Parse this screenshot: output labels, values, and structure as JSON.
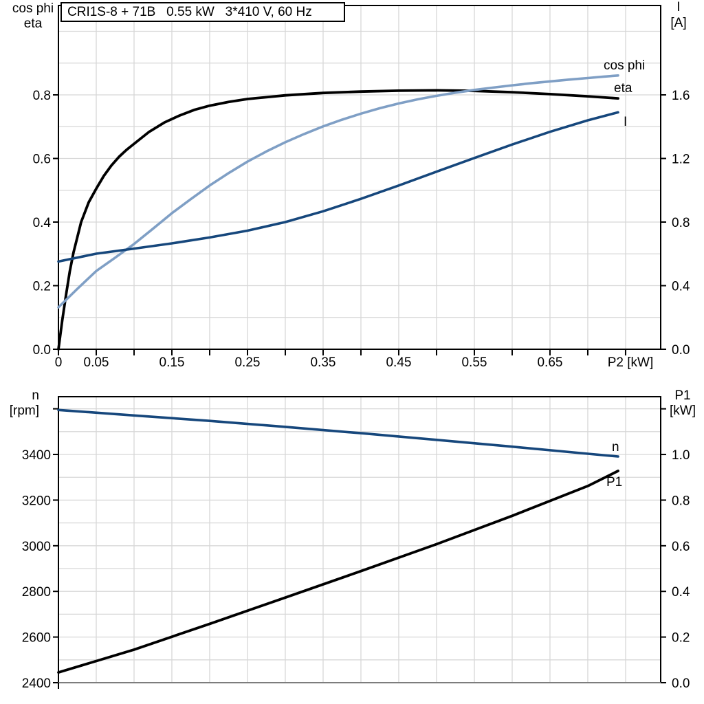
{
  "colors": {
    "curve_black": "#000000",
    "curve_dark_blue": "#16477c",
    "curve_light_blue": "#7f9fc5",
    "grid": "#d7d7d7",
    "frame": "#000000",
    "frame_bottom_gray": "#7d7d7d",
    "text": "#000000"
  },
  "chart_data": [
    {
      "id": "top-chart",
      "type": "line",
      "title": "CRI1S-8 + 71B   0.55 kW   3*410 V, 60 Hz",
      "x_axis": {
        "label": "P2 [kW]",
        "lim": [
          0,
          0.7964
        ],
        "grid_step": 0.05,
        "grid_max": 0.75,
        "tick_values": [
          0,
          0.05,
          0.1,
          0.15,
          0.2,
          0.25,
          0.3,
          0.35,
          0.4,
          0.45,
          0.5,
          0.55,
          0.6,
          0.65,
          0.7,
          0.75
        ],
        "labeled": [
          {
            "v": 0,
            "t": "0"
          },
          {
            "v": 0.05,
            "t": "0.05"
          },
          {
            "v": 0.15,
            "t": "0.15"
          },
          {
            "v": 0.25,
            "t": "0.25"
          },
          {
            "v": 0.35,
            "t": "0.35"
          },
          {
            "v": 0.45,
            "t": "0.45"
          },
          {
            "v": 0.55,
            "t": "0.55"
          },
          {
            "v": 0.65,
            "t": "0.65"
          }
        ]
      },
      "left_axis": {
        "title_lines": [
          {
            "t": "cos phi",
            "color": "text"
          },
          {
            "t": "eta",
            "color": "text"
          }
        ],
        "title_anchor": "middle",
        "title_x": 48,
        "title_ys": [
          18,
          40
        ],
        "lim": [
          0,
          1.0811
        ],
        "minor_grid_step": 0.1,
        "ticks": [
          {
            "v": 0,
            "t": "0.0"
          },
          {
            "v": 0.2,
            "t": "0.2"
          },
          {
            "v": 0.4,
            "t": "0.4"
          },
          {
            "v": 0.6,
            "t": "0.6"
          },
          {
            "v": 0.8,
            "t": "0.8"
          }
        ],
        "extra_tick_values": []
      },
      "right_axis": {
        "title_lines": [
          {
            "t": "I",
            "color": "curve_dark_blue"
          },
          {
            "t": "[A]",
            "color": "text"
          }
        ],
        "title_anchor": "middle",
        "title_x": 987,
        "title_ys": [
          16,
          39
        ],
        "lim": [
          0,
          2.1622
        ],
        "ticks": [
          {
            "v": 0,
            "t": "0.0"
          },
          {
            "v": 0.4,
            "t": "0.4"
          },
          {
            "v": 0.8,
            "t": "0.8"
          },
          {
            "v": 1.2,
            "t": "1.2"
          },
          {
            "v": 1.6,
            "t": "1.6"
          }
        ],
        "extra_tick_values": []
      },
      "series": [
        {
          "name": "eta",
          "axis": "left",
          "color": "curve_black",
          "width": 3.8,
          "label": {
            "t": "eta",
            "x": 893,
            "y": 134,
            "color": "curve_black"
          },
          "points": [
            [
              0,
              0
            ],
            [
              0.005,
              0.09
            ],
            [
              0.01,
              0.17
            ],
            [
              0.015,
              0.245
            ],
            [
              0.02,
              0.305
            ],
            [
              0.03,
              0.4
            ],
            [
              0.04,
              0.462
            ],
            [
              0.05,
              0.505
            ],
            [
              0.06,
              0.545
            ],
            [
              0.07,
              0.578
            ],
            [
              0.08,
              0.605
            ],
            [
              0.09,
              0.627
            ],
            [
              0.1,
              0.646
            ],
            [
              0.12,
              0.684
            ],
            [
              0.14,
              0.713
            ],
            [
              0.16,
              0.735
            ],
            [
              0.18,
              0.753
            ],
            [
              0.2,
              0.766
            ],
            [
              0.225,
              0.778
            ],
            [
              0.25,
              0.787
            ],
            [
              0.3,
              0.7985
            ],
            [
              0.35,
              0.806
            ],
            [
              0.4,
              0.8105
            ],
            [
              0.45,
              0.8133
            ],
            [
              0.5,
              0.8142
            ],
            [
              0.55,
              0.8125
            ],
            [
              0.6,
              0.8085
            ],
            [
              0.65,
              0.8025
            ],
            [
              0.7,
              0.7955
            ],
            [
              0.74,
              0.789
            ]
          ]
        },
        {
          "name": "cos phi",
          "axis": "left",
          "color": "curve_light_blue",
          "width": 3.6,
          "label": {
            "t": "cos phi",
            "x": 878,
            "y": 101,
            "color": "curve_light_blue"
          },
          "points": [
            [
              0,
              0.132
            ],
            [
              0.025,
              0.19
            ],
            [
              0.05,
              0.246
            ],
            [
              0.075,
              0.288
            ],
            [
              0.1,
              0.331
            ],
            [
              0.125,
              0.379
            ],
            [
              0.15,
              0.428
            ],
            [
              0.175,
              0.472
            ],
            [
              0.2,
              0.515
            ],
            [
              0.225,
              0.554
            ],
            [
              0.25,
              0.59
            ],
            [
              0.275,
              0.622
            ],
            [
              0.3,
              0.651
            ],
            [
              0.325,
              0.677
            ],
            [
              0.35,
              0.701
            ],
            [
              0.375,
              0.722
            ],
            [
              0.4,
              0.741
            ],
            [
              0.425,
              0.758
            ],
            [
              0.45,
              0.773
            ],
            [
              0.475,
              0.786
            ],
            [
              0.5,
              0.797
            ],
            [
              0.525,
              0.807
            ],
            [
              0.55,
              0.8155
            ],
            [
              0.575,
              0.823
            ],
            [
              0.6,
              0.83
            ],
            [
              0.625,
              0.8365
            ],
            [
              0.65,
              0.8425
            ],
            [
              0.675,
              0.848
            ],
            [
              0.7,
              0.853
            ],
            [
              0.72,
              0.857
            ],
            [
              0.74,
              0.861
            ]
          ]
        },
        {
          "name": "I",
          "axis": "right",
          "color": "curve_dark_blue",
          "width": 3.6,
          "label": {
            "t": "I",
            "x": 907,
            "y": 183,
            "color": "curve_dark_blue"
          },
          "points": [
            [
              0,
              0.552
            ],
            [
              0.05,
              0.601
            ],
            [
              0.1,
              0.633
            ],
            [
              0.15,
              0.666
            ],
            [
              0.2,
              0.703
            ],
            [
              0.25,
              0.746
            ],
            [
              0.3,
              0.8
            ],
            [
              0.35,
              0.868
            ],
            [
              0.4,
              0.946
            ],
            [
              0.45,
              1.03
            ],
            [
              0.5,
              1.117
            ],
            [
              0.55,
              1.203
            ],
            [
              0.6,
              1.288
            ],
            [
              0.65,
              1.368
            ],
            [
              0.7,
              1.44
            ],
            [
              0.74,
              1.49
            ]
          ]
        }
      ]
    },
    {
      "id": "bottom-chart",
      "type": "line",
      "title": "",
      "x_axis": {
        "label": "",
        "lim": [
          0,
          0.7964
        ],
        "grid_step": 0.05,
        "grid_max": 0.75,
        "tick_values": [
          0
        ],
        "labeled": []
      },
      "left_axis": {
        "title_lines": [
          {
            "t": "n",
            "color": "text"
          },
          {
            "t": "[rpm]",
            "color": "text"
          }
        ],
        "title_anchor": "end",
        "title_x": 57,
        "title_ys": [
          581,
          603
        ],
        "lim": [
          2400,
          3653.1
        ],
        "minor_grid_step": 100,
        "ticks": [
          {
            "v": 2400,
            "t": "2400"
          },
          {
            "v": 2600,
            "t": "2600"
          },
          {
            "v": 2800,
            "t": "2800"
          },
          {
            "v": 3000,
            "t": "3000"
          },
          {
            "v": 3200,
            "t": "3200"
          },
          {
            "v": 3400,
            "t": "3400"
          }
        ],
        "extra_tick_values": [
          3600
        ]
      },
      "right_axis": {
        "title_lines": [
          {
            "t": "P1",
            "color": "text"
          },
          {
            "t": "[kW]",
            "color": "text"
          }
        ],
        "title_anchor": "middle",
        "title_x": 993,
        "title_ys": [
          581,
          603
        ],
        "lim": [
          0,
          1.2532
        ],
        "ticks": [
          {
            "v": 0,
            "t": "0.0"
          },
          {
            "v": 0.2,
            "t": "0.2"
          },
          {
            "v": 0.4,
            "t": "0.4"
          },
          {
            "v": 0.6,
            "t": "0.6"
          },
          {
            "v": 0.8,
            "t": "0.8"
          },
          {
            "v": 1.0,
            "t": "1.0"
          }
        ],
        "extra_tick_values": [
          1.2
        ]
      },
      "series": [
        {
          "name": "n",
          "axis": "left",
          "color": "curve_dark_blue",
          "width": 3.6,
          "label": {
            "t": "n",
            "x": 890,
            "y": 656,
            "color": "curve_dark_blue"
          },
          "points": [
            [
              0,
              3595
            ],
            [
              0.1,
              3571
            ],
            [
              0.2,
              3547
            ],
            [
              0.3,
              3521
            ],
            [
              0.4,
              3493
            ],
            [
              0.5,
              3464
            ],
            [
              0.6,
              3434
            ],
            [
              0.7,
              3403
            ],
            [
              0.74,
              3391
            ]
          ]
        },
        {
          "name": "P1",
          "axis": "right",
          "color": "curve_black",
          "width": 3.8,
          "label": {
            "t": "P1",
            "x": 882,
            "y": 707,
            "color": "curve_black"
          },
          "points": [
            [
              0,
              0.045
            ],
            [
              0.1,
              0.145
            ],
            [
              0.2,
              0.258
            ],
            [
              0.3,
              0.373
            ],
            [
              0.4,
              0.489
            ],
            [
              0.5,
              0.607
            ],
            [
              0.6,
              0.731
            ],
            [
              0.7,
              0.862
            ],
            [
              0.74,
              0.928
            ]
          ]
        }
      ]
    }
  ]
}
